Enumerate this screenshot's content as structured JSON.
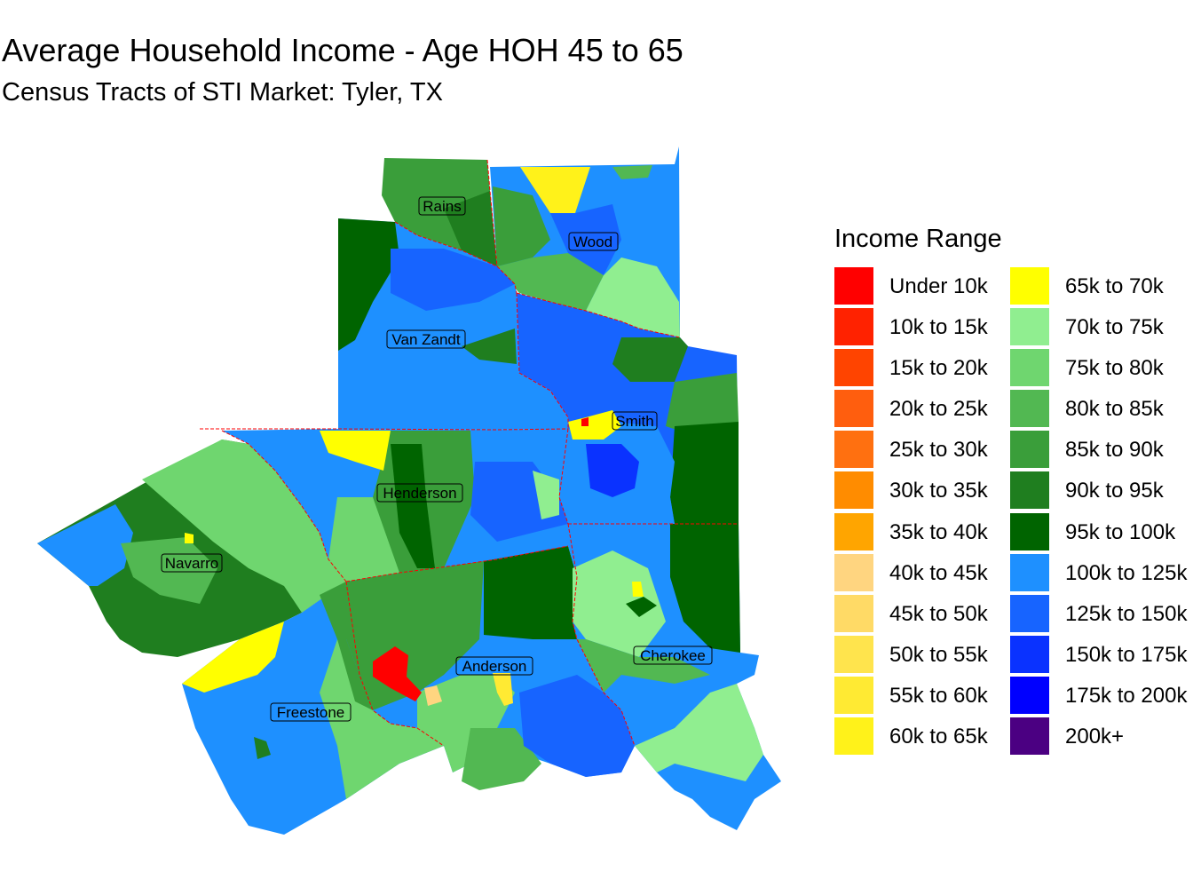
{
  "title": "Average Household Income - Age HOH 45 to 65",
  "subtitle": "Census Tracts of STI Market: Tyler, TX",
  "legend": {
    "title": "Income Range",
    "items": [
      {
        "label": "Under 10k",
        "color": "#FF0000"
      },
      {
        "label": "10k to 15k",
        "color": "#FF2200"
      },
      {
        "label": "15k to 20k",
        "color": "#FF4400"
      },
      {
        "label": "20k to 25k",
        "color": "#FF5E0E"
      },
      {
        "label": "25k to 30k",
        "color": "#FF7010"
      },
      {
        "label": "30k to 35k",
        "color": "#FF8C00"
      },
      {
        "label": "35k to 40k",
        "color": "#FFA500"
      },
      {
        "label": "40k to 45k",
        "color": "#FFD580"
      },
      {
        "label": "45k to 50k",
        "color": "#FFDA66"
      },
      {
        "label": "50k to 55k",
        "color": "#FFE44D"
      },
      {
        "label": "55k to 60k",
        "color": "#FFEA33"
      },
      {
        "label": "60k to 65k",
        "color": "#FFF21A"
      },
      {
        "label": "65k to 70k",
        "color": "#FFFF00"
      },
      {
        "label": "70k to 75k",
        "color": "#90EE90"
      },
      {
        "label": "75k to 80k",
        "color": "#6FD66F"
      },
      {
        "label": "80k to 85k",
        "color": "#52B852"
      },
      {
        "label": "85k to 90k",
        "color": "#3A9E3A"
      },
      {
        "label": "90k to 95k",
        "color": "#1F7E1F"
      },
      {
        "label": "95k to 100k",
        "color": "#006400"
      },
      {
        "label": "100k to 125k",
        "color": "#1E90FF"
      },
      {
        "label": "125k to 150k",
        "color": "#1764FF"
      },
      {
        "label": "150k to 175k",
        "color": "#0A32FF"
      },
      {
        "label": "175k to 200k",
        "color": "#0000FF"
      },
      {
        "label": "200k+",
        "color": "#4B0082"
      }
    ]
  },
  "counties": [
    {
      "name": "Rains"
    },
    {
      "name": "Wood"
    },
    {
      "name": "Van Zandt"
    },
    {
      "name": "Smith"
    },
    {
      "name": "Henderson"
    },
    {
      "name": "Navarro"
    },
    {
      "name": "Anderson"
    },
    {
      "name": "Cherokee"
    },
    {
      "name": "Freestone"
    }
  ],
  "colors": {
    "county_border": "#FF0000",
    "label_border": "#000000"
  }
}
